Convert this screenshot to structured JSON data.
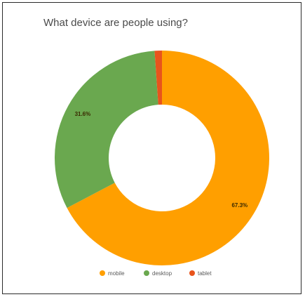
{
  "chart_data": {
    "type": "pie",
    "title": "What device are people using?",
    "donut": true,
    "legend_position": "bottom",
    "slices": [
      {
        "label": "mobile",
        "value": 67.3,
        "display": "67.3%",
        "color": "#ff9f00"
      },
      {
        "label": "desktop",
        "value": 31.6,
        "display": "31.6%",
        "color": "#6aa84f"
      },
      {
        "label": "tablet",
        "value": 1.1,
        "display": "",
        "color": "#e8541c"
      }
    ]
  }
}
